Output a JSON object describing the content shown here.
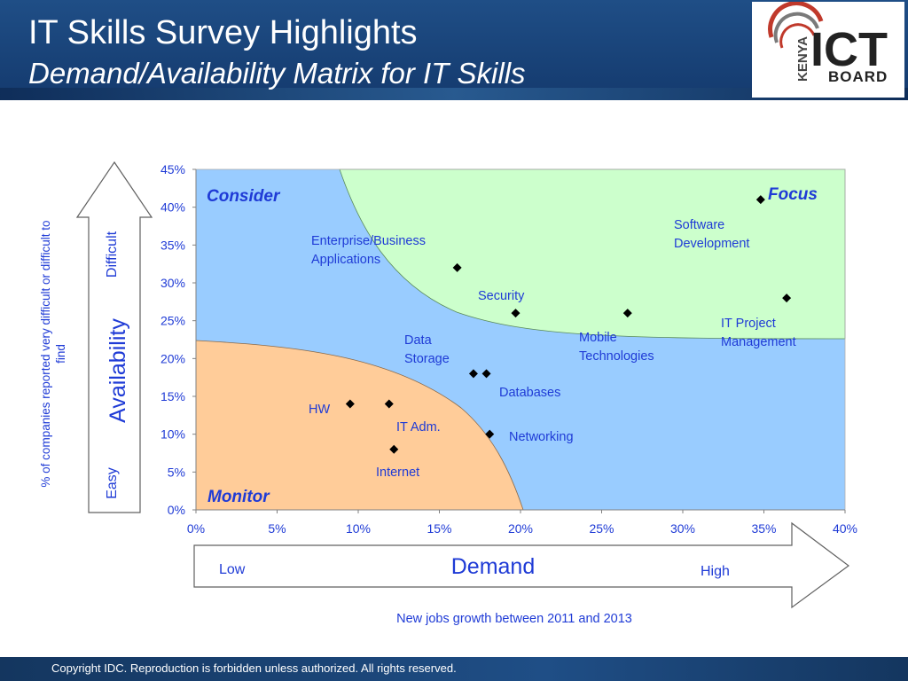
{
  "header": {
    "title": "IT Skills Survey Highlights",
    "subtitle": "Demand/Availability Matrix for IT Skills"
  },
  "logo": {
    "vertical_text": "KENYA",
    "main_text": "ICT",
    "sub_text": "BOARD"
  },
  "footer": {
    "copyright": "Copyright IDC. Reproduction is forbidden unless authorized. All rights reserved."
  },
  "y_axis_arrow": {
    "label": "Availability",
    "top_label": "Difficult",
    "bottom_label": "Easy"
  },
  "x_axis_arrow": {
    "label": "Demand",
    "left_label": "Low",
    "right_label": "High"
  },
  "colors": {
    "consider_region": "#99ccff",
    "focus_region": "#ccffcc",
    "monitor_region": "#ffcc99",
    "marker": "#000000",
    "label_text": "#1f3bd6",
    "header_bg": "#1f4e86",
    "logo_red": "#c0392b"
  },
  "chart_data": {
    "type": "scatter",
    "title": "",
    "xlabel": "New jobs growth between 2011 and 2013",
    "ylabel": "% of companies reported very difficult or difficult to find",
    "xlim": [
      0,
      0.4
    ],
    "ylim": [
      0,
      0.45
    ],
    "x_ticks": [
      "0%",
      "5%",
      "10%",
      "15%",
      "20%",
      "25%",
      "30%",
      "35%",
      "40%"
    ],
    "y_ticks": [
      "0%",
      "5%",
      "10%",
      "15%",
      "20%",
      "25%",
      "30%",
      "35%",
      "40%",
      "45%"
    ],
    "grid": false,
    "regions": [
      {
        "name": "Consider",
        "position": "top-left"
      },
      {
        "name": "Focus",
        "position": "top-right"
      },
      {
        "name": "Monitor",
        "position": "bottom-left"
      }
    ],
    "points": [
      {
        "label": "Software Development",
        "x": 0.348,
        "y": 0.41
      },
      {
        "label": "IT Project Management",
        "x": 0.364,
        "y": 0.28
      },
      {
        "label": "Enterprise/Business Applications",
        "x": 0.161,
        "y": 0.32
      },
      {
        "label": "Security",
        "x": 0.197,
        "y": 0.26
      },
      {
        "label": "Mobile Technologies",
        "x": 0.266,
        "y": 0.26
      },
      {
        "label": "Data Storage",
        "x": 0.171,
        "y": 0.18
      },
      {
        "label": "Databases",
        "x": 0.179,
        "y": 0.18
      },
      {
        "label": "HW",
        "x": 0.095,
        "y": 0.14
      },
      {
        "label": "IT Adm.",
        "x": 0.119,
        "y": 0.14
      },
      {
        "label": "Networking",
        "x": 0.181,
        "y": 0.1
      },
      {
        "label": "Internet",
        "x": 0.122,
        "y": 0.08
      }
    ]
  }
}
